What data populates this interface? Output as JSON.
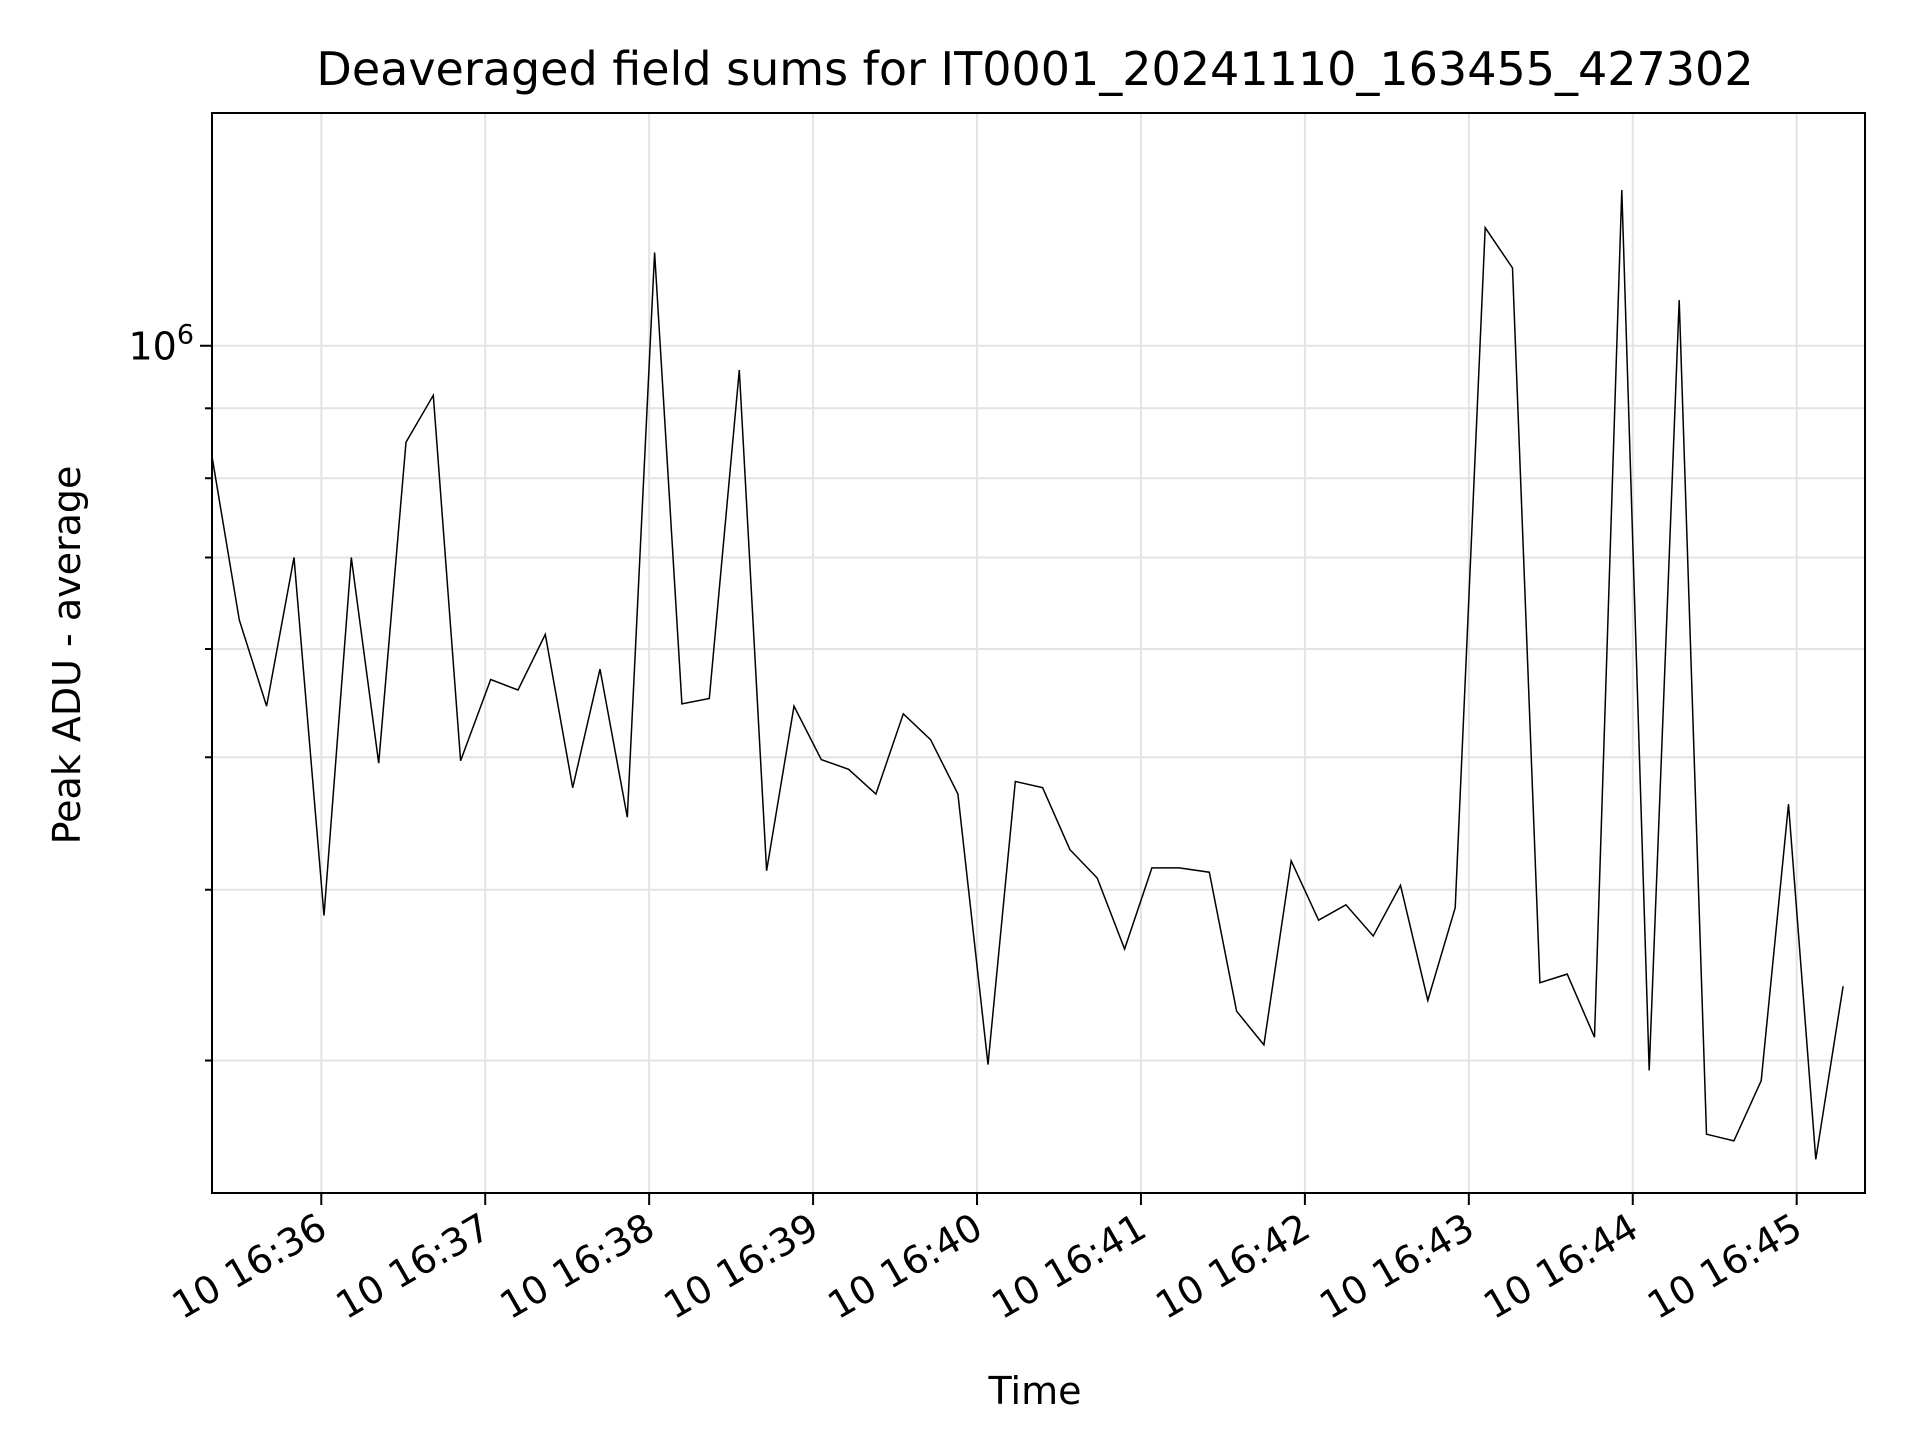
{
  "chart_data": {
    "type": "line",
    "title": "Deaveraged field sums for IT0001_20241110_163455_427302",
    "xlabel": "Time",
    "ylabel": "Peak ADU - average",
    "y_scale": "log",
    "y_major_tick": {
      "base": "10",
      "exponent": "6",
      "value": 1000000
    },
    "y_minor_ticks": [
      300000,
      400000,
      500000,
      600000,
      700000,
      800000,
      900000
    ],
    "ylim": [
      240000,
      1480000
    ],
    "xlim": [
      "16:35:20",
      "16:45:25"
    ],
    "x_ticks": [
      {
        "label": "10 16:36",
        "t": "16:36:00"
      },
      {
        "label": "10 16:37",
        "t": "16:37:00"
      },
      {
        "label": "10 16:38",
        "t": "16:38:00"
      },
      {
        "label": "10 16:39",
        "t": "16:39:00"
      },
      {
        "label": "10 16:40",
        "t": "16:40:00"
      },
      {
        "label": "10 16:41",
        "t": "16:41:00"
      },
      {
        "label": "10 16:42",
        "t": "16:42:00"
      },
      {
        "label": "10 16:43",
        "t": "16:43:00"
      },
      {
        "label": "10 16:44",
        "t": "16:44:00"
      },
      {
        "label": "10 16:45",
        "t": "16:45:00"
      }
    ],
    "grid": true,
    "series": [
      {
        "color": "#000000",
        "points": [
          [
            "16:35:20",
            830000
          ],
          [
            "16:35:30",
            630000
          ],
          [
            "16:35:40",
            545000
          ],
          [
            "16:35:50",
            700000
          ],
          [
            "16:36:01",
            383000
          ],
          [
            "16:36:11",
            700000
          ],
          [
            "16:36:21",
            495000
          ],
          [
            "16:36:31",
            850000
          ],
          [
            "16:36:41",
            920000
          ],
          [
            "16:36:51",
            497000
          ],
          [
            "16:37:02",
            570000
          ],
          [
            "16:37:12",
            560000
          ],
          [
            "16:37:22",
            615000
          ],
          [
            "16:37:32",
            475000
          ],
          [
            "16:37:42",
            580000
          ],
          [
            "16:37:52",
            452000
          ],
          [
            "16:38:02",
            1170000
          ],
          [
            "16:38:12",
            547000
          ],
          [
            "16:38:22",
            552000
          ],
          [
            "16:38:33",
            960000
          ],
          [
            "16:38:43",
            413000
          ],
          [
            "16:38:53",
            545000
          ],
          [
            "16:39:03",
            498000
          ],
          [
            "16:39:13",
            490000
          ],
          [
            "16:39:23",
            470000
          ],
          [
            "16:39:33",
            538000
          ],
          [
            "16:39:43",
            515000
          ],
          [
            "16:39:53",
            470000
          ],
          [
            "16:40:04",
            298000
          ],
          [
            "16:40:14",
            480000
          ],
          [
            "16:40:24",
            475000
          ],
          [
            "16:40:34",
            428000
          ],
          [
            "16:40:44",
            408000
          ],
          [
            "16:40:54",
            362000
          ],
          [
            "16:41:04",
            415000
          ],
          [
            "16:41:14",
            415000
          ],
          [
            "16:41:25",
            412000
          ],
          [
            "16:41:35",
            326000
          ],
          [
            "16:41:45",
            308000
          ],
          [
            "16:41:55",
            420000
          ],
          [
            "16:42:05",
            380000
          ],
          [
            "16:42:15",
            390000
          ],
          [
            "16:42:25",
            370000
          ],
          [
            "16:42:35",
            403000
          ],
          [
            "16:42:45",
            332000
          ],
          [
            "16:42:55",
            388000
          ],
          [
            "16:43:06",
            1220000
          ],
          [
            "16:43:16",
            1140000
          ],
          [
            "16:43:26",
            342000
          ],
          [
            "16:43:36",
            347000
          ],
          [
            "16:43:46",
            312000
          ],
          [
            "16:43:56",
            1300000
          ],
          [
            "16:44:06",
            295000
          ],
          [
            "16:44:17",
            1080000
          ],
          [
            "16:44:27",
            265000
          ],
          [
            "16:44:37",
            262000
          ],
          [
            "16:44:47",
            290000
          ],
          [
            "16:44:57",
            462000
          ],
          [
            "16:45:07",
            254000
          ],
          [
            "16:45:17",
            340000
          ]
        ]
      }
    ]
  }
}
